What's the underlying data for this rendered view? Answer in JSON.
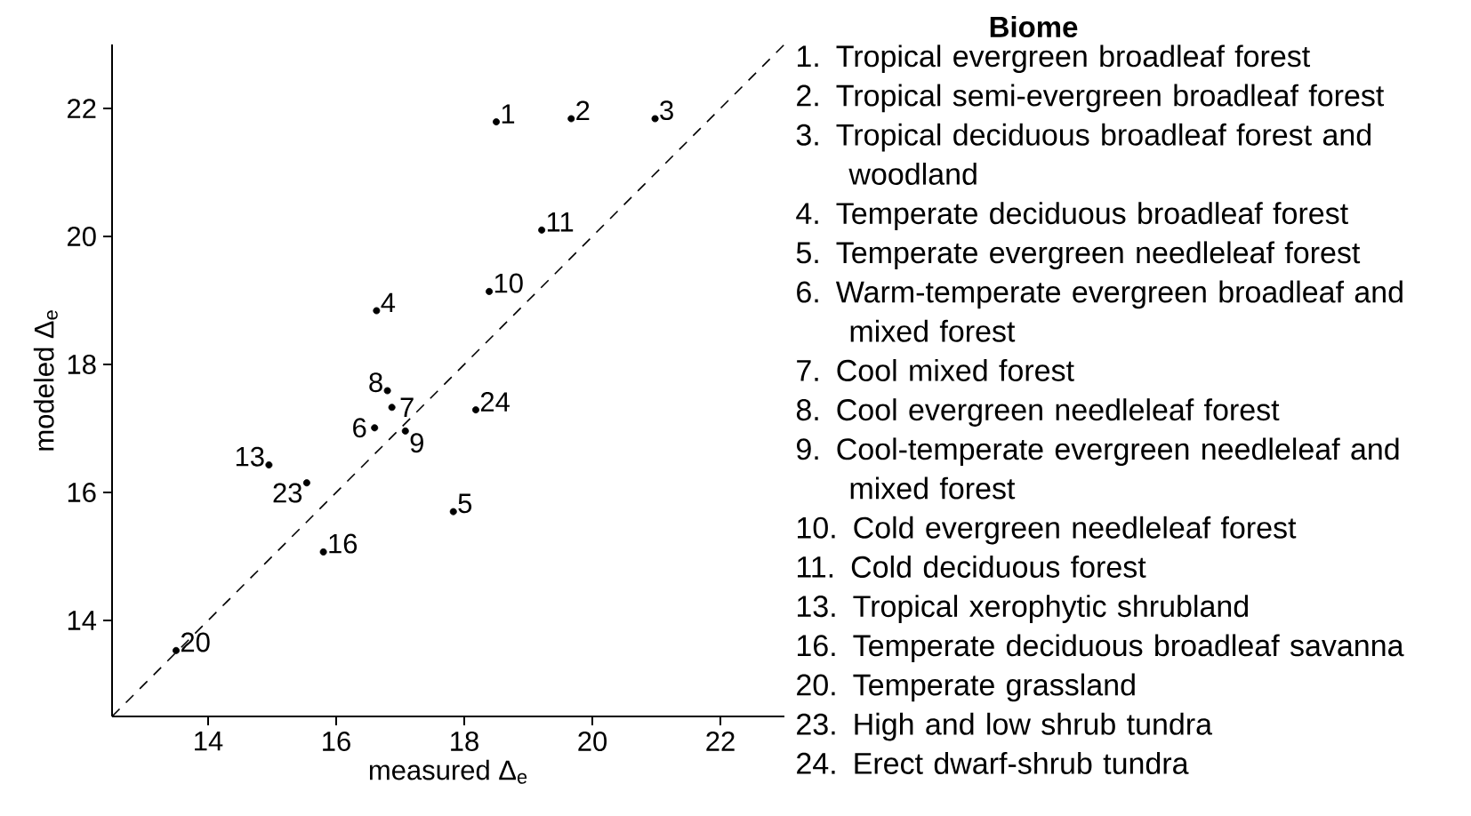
{
  "chart_data": {
    "type": "scatter",
    "xlabel": "measured Δ$_{e}$",
    "ylabel": "modeled Δ$_{e}$",
    "legend_title": "Biome",
    "xlim": [
      12.5,
      23
    ],
    "ylim": [
      12.5,
      23
    ],
    "xticks": [
      14,
      16,
      18,
      20,
      22
    ],
    "yticks": [
      14,
      16,
      18,
      20,
      22
    ],
    "grid": false,
    "series": [
      {
        "color": "#000000",
        "marker": "circle",
        "x": [
          18.5,
          19.67,
          20.98,
          16.63,
          17.83,
          16.6,
          16.87,
          16.8,
          17.08,
          18.39,
          19.21,
          14.95,
          15.8,
          13.5,
          15.54,
          18.18
        ],
        "values": [
          21.79,
          21.84,
          21.84,
          18.84,
          15.7,
          17.01,
          17.33,
          17.59,
          16.96,
          19.14,
          20.1,
          16.43,
          15.07,
          13.53,
          16.15,
          17.29
        ]
      },
      {
        "type": "line",
        "color": "#000000",
        "marker": "none",
        "line_style": "dashed",
        "x": [
          12.5,
          23
        ],
        "values": [
          12.5,
          23
        ]
      }
    ],
    "annotations": [
      {
        "text": "1",
        "x": 18.5,
        "y": 21.79
      },
      {
        "text": "2",
        "x": 19.67,
        "y": 21.84
      },
      {
        "text": "3",
        "x": 20.98,
        "y": 21.84
      },
      {
        "text": "4",
        "x": 16.63,
        "y": 18.84
      },
      {
        "text": "5",
        "x": 17.83,
        "y": 15.7
      },
      {
        "text": "6",
        "x": 16.6,
        "y": 17.01
      },
      {
        "text": "7",
        "x": 16.87,
        "y": 17.33
      },
      {
        "text": "8",
        "x": 16.8,
        "y": 17.59
      },
      {
        "text": "9",
        "x": 17.08,
        "y": 16.96
      },
      {
        "text": "10",
        "x": 18.39,
        "y": 19.14
      },
      {
        "text": "11",
        "x": 19.21,
        "y": 20.1
      },
      {
        "text": "13",
        "x": 14.95,
        "y": 16.43
      },
      {
        "text": "16",
        "x": 15.8,
        "y": 15.07
      },
      {
        "text": "20",
        "x": 13.5,
        "y": 13.53
      },
      {
        "text": "23",
        "x": 15.54,
        "y": 16.15
      },
      {
        "text": "24",
        "x": 18.18,
        "y": 17.29
      },
      "1. Tropical evergreen broadleaf forest",
      "2. Tropical semi-evergreen broadleaf forest",
      "3. Tropical deciduous broadleaf forest and woodland",
      "4. Temperate deciduous broadleaf forest",
      "5. Temperate evergreen needleleaf forest",
      "6. Warm-temperate evergreen broadleaf and mixed forest",
      "7. Cool mixed forest",
      "8. Cool evergreen needleleaf forest",
      "9. Cool-temperate evergreen needleleaf and mixed forest",
      "10. Cold evergreen needleleaf forest",
      "11. Cold deciduous forest",
      "13. Tropical xerophytic shrubland",
      "16. Temperate deciduous broadleaf savanna",
      "20. Temperate grassland",
      "23. High and low shrub tundra",
      "24. Erect dwarf-shrub tundra"
    ]
  }
}
